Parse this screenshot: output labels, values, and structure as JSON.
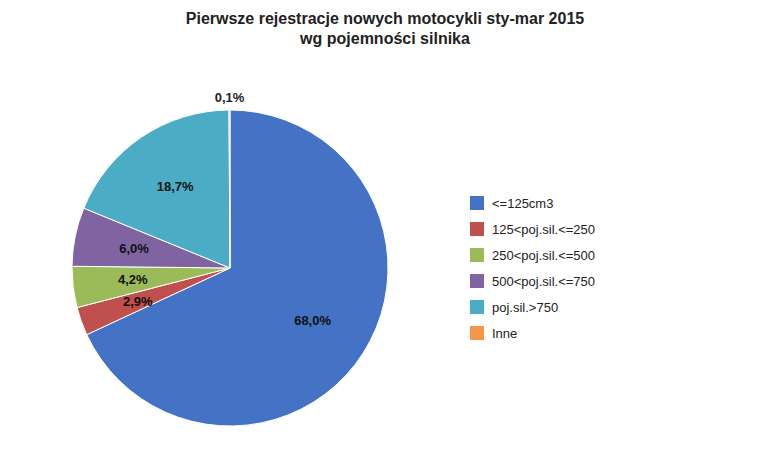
{
  "chart_data": {
    "type": "pie",
    "title": "Pierwsze rejestracje nowych motocykli sty-mar 2015\nwg pojemności silnika",
    "categories": [
      "<=125cm3",
      "125<poj.sil.<=250",
      "250<poj.sil.<=500",
      "500<poj.sil.<=750",
      "poj.sil.>750",
      "Inne"
    ],
    "values": [
      68.0,
      2.9,
      4.2,
      6.0,
      18.7,
      0.1
    ],
    "value_labels": [
      "68,0%",
      "2,9%",
      "4,2%",
      "6,0%",
      "18,7%",
      "0,1%"
    ],
    "colors": [
      "#4472C4",
      "#C0504D",
      "#9BBB59",
      "#8064A2",
      "#4BACC6",
      "#F79646"
    ],
    "data_labels": true,
    "legend": "right"
  }
}
